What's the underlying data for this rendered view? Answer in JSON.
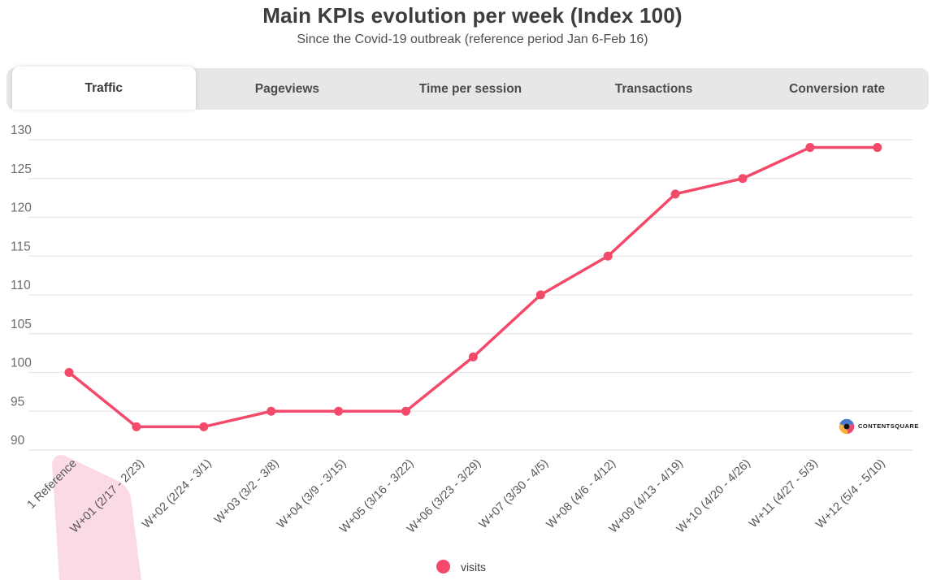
{
  "header": {
    "title": "Main KPIs evolution per week (Index 100)",
    "subtitle": "Since the Covid-19 outbreak (reference period Jan 6-Feb 16)"
  },
  "tabs": {
    "items": [
      {
        "label": "Traffic",
        "active": true
      },
      {
        "label": "Pageviews",
        "active": false
      },
      {
        "label": "Time per session",
        "active": false
      },
      {
        "label": "Transactions",
        "active": false
      },
      {
        "label": "Conversion rate",
        "active": false
      }
    ]
  },
  "chart_data": {
    "type": "line",
    "title": "Main KPIs evolution per week (Index 100)",
    "subtitle": "Since the Covid-19 outbreak (reference period Jan 6-Feb 16)",
    "categories": [
      "1 Reference",
      "W+01 (2/17 - 2/23)",
      "W+02 (2/24 - 3/1)",
      "W+03 (3/2 - 3/8)",
      "W+04 (3/9 - 3/15)",
      "W+05 (3/16 - 3/22)",
      "W+06 (3/23 - 3/29)",
      "W+07 (3/30 - 4/5)",
      "W+08 (4/6 - 4/12)",
      "W+09 (4/13 - 4/19)",
      "W+10 (4/20 - 4/26)",
      "W+11 (4/27 - 5/3)",
      "W+12 (5/4 - 5/10)"
    ],
    "series": [
      {
        "name": "visits",
        "color": "#f3496a",
        "values": [
          100,
          93,
          93,
          95,
          95,
          95,
          102,
          110,
          115,
          123,
          125,
          129,
          129
        ]
      }
    ],
    "yticks": [
      90,
      95,
      100,
      105,
      110,
      115,
      120,
      125,
      130
    ],
    "ylim": [
      90,
      130
    ],
    "xlabel": "",
    "ylabel": "",
    "grid": true,
    "legend_position": "bottom"
  },
  "legend": {
    "items": [
      {
        "label": "visits",
        "color": "#f3496a"
      }
    ]
  },
  "branding": {
    "logo_text": "CONTENTSQUARE"
  },
  "colors": {
    "accent": "#f3496a",
    "highlight": "#fbdbe3",
    "tab_bar_bg": "#e8e7e7",
    "grid": "#e5e5e5",
    "y_tick_text": "#6b6b6b",
    "x_tick_text": "#565656"
  }
}
